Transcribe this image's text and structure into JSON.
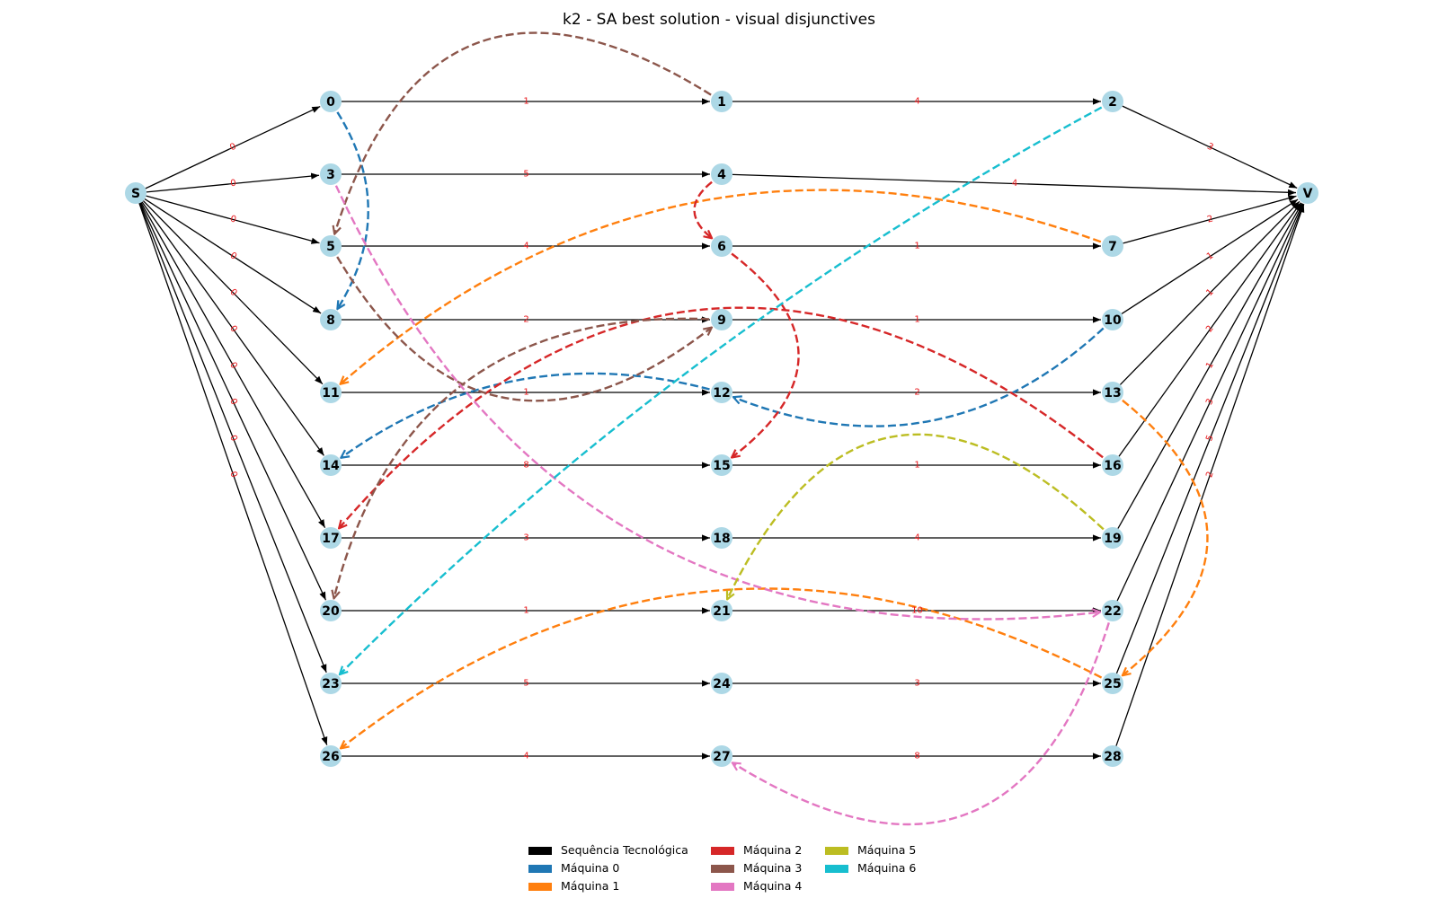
{
  "title": "k2 - SA best solution - visual disjunctives",
  "colors": {
    "node": "#add8e6",
    "tech": "#000000",
    "weight": "#e8161a",
    "machines": [
      "#1f77b4",
      "#ff7f0e",
      "#d62728",
      "#8c564b",
      "#e377c2",
      "#bcbd22",
      "#17becf"
    ]
  },
  "nodes": [
    "S",
    "V",
    "0",
    "1",
    "2",
    "3",
    "4",
    "5",
    "6",
    "7",
    "8",
    "9",
    "10",
    "11",
    "12",
    "13",
    "14",
    "15",
    "16",
    "17",
    "18",
    "19",
    "20",
    "21",
    "22",
    "23",
    "24",
    "25",
    "26",
    "27",
    "28"
  ],
  "tech_edges": [
    {
      "from": "S",
      "to": "0",
      "w": "0"
    },
    {
      "from": "S",
      "to": "3",
      "w": "0"
    },
    {
      "from": "S",
      "to": "5",
      "w": "0"
    },
    {
      "from": "S",
      "to": "8",
      "w": "0"
    },
    {
      "from": "S",
      "to": "11",
      "w": "0"
    },
    {
      "from": "S",
      "to": "14",
      "w": "0"
    },
    {
      "from": "S",
      "to": "17",
      "w": "0"
    },
    {
      "from": "S",
      "to": "20",
      "w": "0"
    },
    {
      "from": "S",
      "to": "23",
      "w": "0"
    },
    {
      "from": "S",
      "to": "26",
      "w": "0"
    },
    {
      "from": "0",
      "to": "1",
      "w": "1"
    },
    {
      "from": "1",
      "to": "2",
      "w": "4"
    },
    {
      "from": "3",
      "to": "4",
      "w": "5"
    },
    {
      "from": "5",
      "to": "6",
      "w": "4"
    },
    {
      "from": "6",
      "to": "7",
      "w": "1"
    },
    {
      "from": "8",
      "to": "9",
      "w": "2"
    },
    {
      "from": "9",
      "to": "10",
      "w": "1"
    },
    {
      "from": "11",
      "to": "12",
      "w": "1"
    },
    {
      "from": "12",
      "to": "13",
      "w": "2"
    },
    {
      "from": "14",
      "to": "15",
      "w": "8"
    },
    {
      "from": "15",
      "to": "16",
      "w": "1"
    },
    {
      "from": "17",
      "to": "18",
      "w": "3"
    },
    {
      "from": "18",
      "to": "19",
      "w": "4"
    },
    {
      "from": "20",
      "to": "21",
      "w": "1"
    },
    {
      "from": "21",
      "to": "22",
      "w": "10"
    },
    {
      "from": "23",
      "to": "24",
      "w": "5"
    },
    {
      "from": "24",
      "to": "25",
      "w": "3"
    },
    {
      "from": "26",
      "to": "27",
      "w": "4"
    },
    {
      "from": "27",
      "to": "28",
      "w": "8"
    },
    {
      "from": "2",
      "to": "V",
      "w": "3"
    },
    {
      "from": "4",
      "to": "V",
      "w": "4"
    },
    {
      "from": "7",
      "to": "V",
      "w": "2"
    },
    {
      "from": "10",
      "to": "V",
      "w": "1"
    },
    {
      "from": "13",
      "to": "V",
      "w": "1"
    },
    {
      "from": "16",
      "to": "V",
      "w": "2"
    },
    {
      "from": "19",
      "to": "V",
      "w": "1"
    },
    {
      "from": "22",
      "to": "V",
      "w": "3"
    },
    {
      "from": "25",
      "to": "V",
      "w": "5"
    },
    {
      "from": "28",
      "to": "V",
      "w": "2"
    }
  ],
  "disjunctive_edges": [
    {
      "from": "0",
      "to": "8",
      "machine": 0
    },
    {
      "from": "12",
      "to": "14",
      "machine": 0
    },
    {
      "from": "10",
      "to": "12",
      "machine": 0
    },
    {
      "from": "7",
      "to": "11",
      "machine": 1
    },
    {
      "from": "13",
      "to": "25",
      "machine": 1
    },
    {
      "from": "25",
      "to": "26",
      "machine": 1
    },
    {
      "from": "4",
      "to": "6",
      "machine": 2
    },
    {
      "from": "6",
      "to": "15",
      "machine": 2
    },
    {
      "from": "16",
      "to": "17",
      "machine": 2
    },
    {
      "from": "1",
      "to": "5",
      "machine": 3
    },
    {
      "from": "5",
      "to": "9",
      "machine": 3
    },
    {
      "from": "9",
      "to": "20",
      "machine": 3
    },
    {
      "from": "3",
      "to": "22",
      "machine": 4
    },
    {
      "from": "22",
      "to": "27",
      "machine": 4
    },
    {
      "from": "19",
      "to": "21",
      "machine": 5
    },
    {
      "from": "2",
      "to": "23",
      "machine": 6
    }
  ],
  "legend": [
    {
      "label": "Sequência Tecnológica",
      "color": "#000000"
    },
    {
      "label": "Máquina 0",
      "color": "#1f77b4"
    },
    {
      "label": "Máquina 1",
      "color": "#ff7f0e"
    },
    {
      "label": "Máquina 2",
      "color": "#d62728"
    },
    {
      "label": "Máquina 3",
      "color": "#8c564b"
    },
    {
      "label": "Máquina 4",
      "color": "#e377c2"
    },
    {
      "label": "Máquina 5",
      "color": "#bcbd22"
    },
    {
      "label": "Máquina 6",
      "color": "#17becf"
    }
  ]
}
